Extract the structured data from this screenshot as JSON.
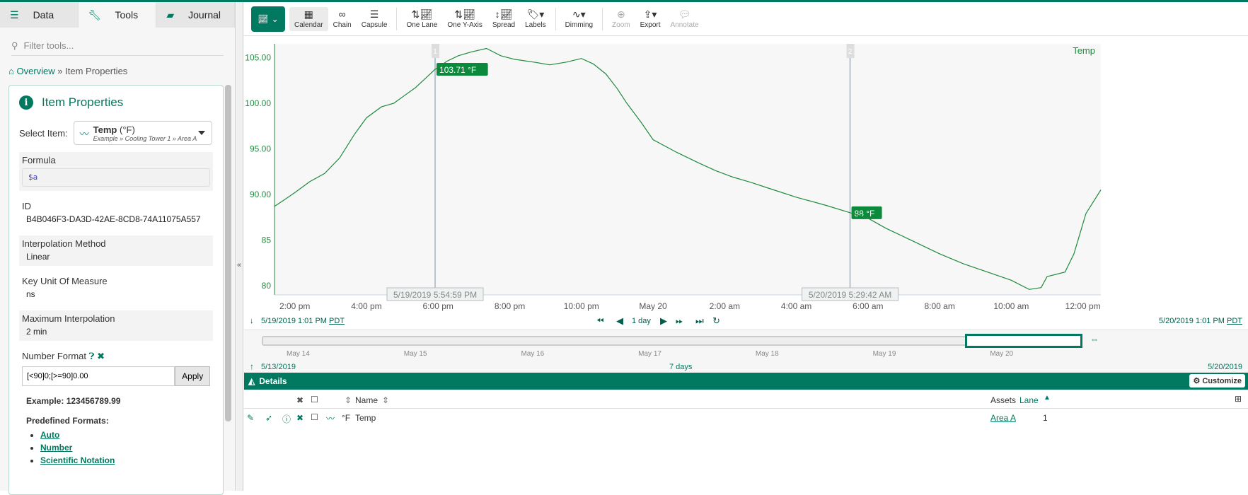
{
  "left": {
    "tabs": [
      {
        "label": "Data",
        "icon": "database-icon"
      },
      {
        "label": "Tools",
        "icon": "wrench-icon"
      },
      {
        "label": "Journal",
        "icon": "book-icon"
      }
    ],
    "filter_placeholder": "Filter tools...",
    "breadcrumb": {
      "home": "Overview",
      "sep": "»",
      "current": "Item Properties"
    },
    "card": {
      "title": "Item Properties",
      "select_label": "Select Item:",
      "selected_item": {
        "name": "Temp",
        "unit": "(°F)",
        "path": "Example » Cooling Tower 1 » Area A"
      },
      "formula_label": "Formula",
      "formula": "$a",
      "id_label": "ID",
      "id": "B4B046F3-DA3D-42AE-8CD8-74A11075A557",
      "interp_label": "Interpolation Method",
      "interp": "Linear",
      "key_unit_label": "Key Unit Of Measure",
      "key_unit": "ns",
      "max_interp_label": "Maximum Interpolation",
      "max_interp": "2 min",
      "number_format_label": "Number Format",
      "number_format": "[<90]0;[>=90]0.00",
      "apply": "Apply",
      "example": "Example: 123456789.99",
      "predefined_label": "Predefined Formats:",
      "predefined": [
        "Auto",
        "Number",
        "Scientific Notation"
      ]
    }
  },
  "toolbar": {
    "items": [
      {
        "label": "Calendar",
        "icon": "calendar-icon",
        "active": true
      },
      {
        "label": "Chain",
        "icon": "chain-icon"
      },
      {
        "label": "Capsule",
        "icon": "capsule-icon"
      },
      {
        "label": "One Lane",
        "icon": "one-lane-icon"
      },
      {
        "label": "One Y-Axis",
        "icon": "one-y-axis-icon"
      },
      {
        "label": "Spread",
        "icon": "spread-icon"
      },
      {
        "label": "Labels",
        "icon": "tag-icon"
      },
      {
        "label": "Dimming",
        "icon": "dimming-icon"
      },
      {
        "label": "Zoom",
        "icon": "zoom-icon",
        "disabled": true
      },
      {
        "label": "Export",
        "icon": "export-icon"
      },
      {
        "label": "Annotate",
        "icon": "comment-icon",
        "disabled": true
      }
    ]
  },
  "chart_data": {
    "type": "line",
    "series": [
      {
        "name": "Temp",
        "color": "#1f8a3c",
        "points": [
          [
            "2019-05-19T13:26",
            88.7
          ],
          [
            "2019-05-19T13:40",
            89.3
          ],
          [
            "2019-05-19T14:00",
            90.2
          ],
          [
            "2019-05-19T14:25",
            91.4
          ],
          [
            "2019-05-19T14:50",
            92.3
          ],
          [
            "2019-05-19T15:15",
            94.0
          ],
          [
            "2019-05-19T15:40",
            96.6
          ],
          [
            "2019-05-19T16:00",
            98.4
          ],
          [
            "2019-05-19T16:25",
            99.6
          ],
          [
            "2019-05-19T16:46",
            100.0
          ],
          [
            "2019-05-19T17:05",
            100.9
          ],
          [
            "2019-05-19T17:22",
            101.7
          ],
          [
            "2019-05-19T17:40",
            102.8
          ],
          [
            "2019-05-19T17:55",
            103.71
          ],
          [
            "2019-05-19T18:15",
            104.6
          ],
          [
            "2019-05-19T18:34",
            105.2
          ],
          [
            "2019-05-19T18:55",
            105.6
          ],
          [
            "2019-05-19T19:21",
            106.0
          ],
          [
            "2019-05-19T19:45",
            105.2
          ],
          [
            "2019-05-19T20:08",
            104.8
          ],
          [
            "2019-05-19T20:40",
            104.5
          ],
          [
            "2019-05-19T21:07",
            104.2
          ],
          [
            "2019-05-19T21:35",
            104.5
          ],
          [
            "2019-05-19T22:00",
            104.9
          ],
          [
            "2019-05-19T22:20",
            104.3
          ],
          [
            "2019-05-19T22:41",
            103.2
          ],
          [
            "2019-05-19T23:00",
            101.6
          ],
          [
            "2019-05-19T23:16",
            100.0
          ],
          [
            "2019-05-19T23:40",
            97.9
          ],
          [
            "2019-05-20T00:00",
            96.0
          ],
          [
            "2019-05-20T00:40",
            94.6
          ],
          [
            "2019-05-20T01:15",
            93.5
          ],
          [
            "2019-05-20T01:45",
            92.6
          ],
          [
            "2019-05-20T02:14",
            91.9
          ],
          [
            "2019-05-20T02:45",
            91.3
          ],
          [
            "2019-05-20T03:13",
            90.7
          ],
          [
            "2019-05-20T04:00",
            89.7
          ],
          [
            "2019-05-20T04:50",
            88.8
          ],
          [
            "2019-05-20T05:30",
            88.0
          ],
          [
            "2019-05-20T06:00",
            87.4
          ],
          [
            "2019-05-20T06:30",
            86.3
          ],
          [
            "2019-05-20T07:15",
            84.9
          ],
          [
            "2019-05-20T08:00",
            83.5
          ],
          [
            "2019-05-20T08:40",
            82.4
          ],
          [
            "2019-05-20T09:20",
            81.5
          ],
          [
            "2019-05-20T10:00",
            80.6
          ],
          [
            "2019-05-20T10:30",
            79.6
          ],
          [
            "2019-05-20T10:50",
            79.8
          ],
          [
            "2019-05-20T11:00",
            81.0
          ],
          [
            "2019-05-20T11:30",
            81.5
          ],
          [
            "2019-05-20T11:45",
            83.5
          ],
          [
            "2019-05-20T12:05",
            87.9
          ],
          [
            "2019-05-20T12:30",
            90.5
          ]
        ]
      }
    ],
    "series_label": "Temp",
    "xlim": [
      "2019-05-19T13:26",
      "2019-05-20T12:30"
    ],
    "ylim": [
      79,
      106.5
    ],
    "y_ticks": [
      "80",
      "85",
      "90.00",
      "95.00",
      "100.00",
      "105.00"
    ],
    "y_tick_values": [
      80,
      85,
      90,
      95,
      100,
      105
    ],
    "x_ticks": [
      "2:00 pm",
      "4:00 pm",
      "6:00 pm",
      "8:00 pm",
      "10:00 pm",
      "May 20",
      "2:00 am",
      "4:00 am",
      "6:00 am",
      "8:00 am",
      "10:00 am",
      "12:00 pm"
    ],
    "x_tick_times": [
      "2019-05-19T14:00",
      "2019-05-19T16:00",
      "2019-05-19T18:00",
      "2019-05-19T20:00",
      "2019-05-19T22:00",
      "2019-05-20T00:00",
      "2019-05-20T02:00",
      "2019-05-20T04:00",
      "2019-05-20T06:00",
      "2019-05-20T08:00",
      "2019-05-20T10:00",
      "2019-05-20T12:00"
    ],
    "cursors": [
      {
        "id": "1",
        "time": "2019-05-19T17:55",
        "time_label": "5/19/2019 5:54:59 PM",
        "value_label": "103.71 °F"
      },
      {
        "id": "2",
        "time": "2019-05-20T05:30",
        "time_label": "5/20/2019 5:29:42 AM",
        "value_label": "88 °F"
      }
    ]
  },
  "nav": {
    "start": "5/19/2019 1:01 PM",
    "end": "5/20/2019 1:01 PM",
    "tz": "PDT",
    "duration": "1 day"
  },
  "overview": {
    "ticks": [
      "May 14",
      "May 15",
      "May 16",
      "May 17",
      "May 18",
      "May 19",
      "May 20"
    ],
    "start": "5/13/2019",
    "end": "5/20/2019",
    "duration": "7 days",
    "selection_start_fraction": 0.857,
    "selection_end_fraction": 1.0
  },
  "details": {
    "title": "Details",
    "customize": "Customize",
    "columns": {
      "name": "Name",
      "assets": "Assets",
      "lane": "Lane"
    },
    "rows": [
      {
        "unit": "°F",
        "name": "Temp",
        "asset": "Area A",
        "lane": "1"
      }
    ]
  },
  "colors": {
    "accent": "#007960",
    "line": "#1f8a3c",
    "label_bg": "#0a8a3a"
  }
}
